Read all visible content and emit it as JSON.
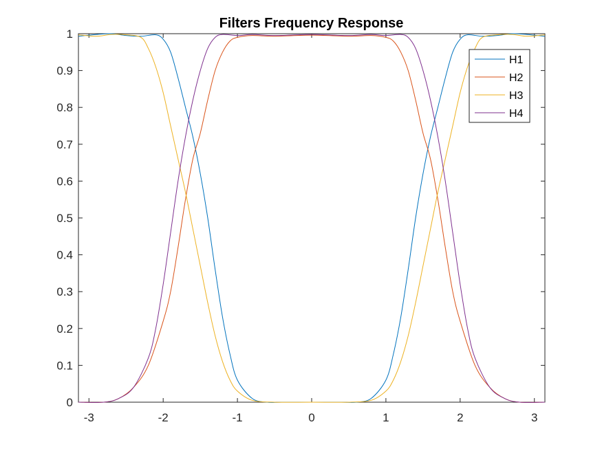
{
  "chart_data": {
    "type": "line",
    "title": "Filters Frequency Response",
    "xlabel": "",
    "ylabel": "",
    "xlim": [
      -3.1416,
      3.1416
    ],
    "ylim": [
      0,
      1
    ],
    "xticks": [
      -3,
      -2,
      -1,
      0,
      1,
      2,
      3
    ],
    "yticks": [
      0,
      0.1,
      0.2,
      0.3,
      0.4,
      0.5,
      0.6,
      0.7,
      0.8,
      0.9,
      1
    ],
    "ytick_labels": [
      "0",
      "0.1",
      "0.2",
      "0.3",
      "0.4",
      "0.5",
      "0.6",
      "0.7",
      "0.8",
      "0.9",
      "1"
    ],
    "grid": false,
    "legend": "top-right",
    "series": [
      {
        "name": "H1",
        "color": "#0072BD",
        "x": [
          -3.14,
          -2.9,
          -2.7,
          -2.5,
          -2.3,
          -2.1,
          -2.0,
          -1.9,
          -1.8,
          -1.7,
          -1.6,
          -1.5,
          -1.4,
          -1.3,
          -1.2,
          -1.1,
          -1.0,
          -0.8,
          -0.6,
          -0.4,
          0.0,
          0.4,
          0.6,
          0.8,
          1.0,
          1.1,
          1.2,
          1.3,
          1.4,
          1.5,
          1.6,
          1.7,
          1.8,
          1.9,
          2.0,
          2.1,
          2.3,
          2.5,
          2.7,
          2.9,
          3.14
        ],
        "y": [
          0.993,
          0.998,
          1.0,
          0.995,
          0.993,
          0.997,
          0.985,
          0.95,
          0.88,
          0.8,
          0.72,
          0.62,
          0.5,
          0.36,
          0.23,
          0.13,
          0.06,
          0.01,
          0.0,
          0.0,
          0.0,
          0.0,
          0.0,
          0.01,
          0.06,
          0.13,
          0.23,
          0.36,
          0.5,
          0.62,
          0.72,
          0.8,
          0.88,
          0.95,
          0.985,
          0.997,
          0.993,
          0.995,
          1.0,
          0.998,
          0.993
        ]
      },
      {
        "name": "H2",
        "color": "#D95319",
        "x": [
          -3.14,
          -2.8,
          -2.6,
          -2.4,
          -2.2,
          -2.0,
          -1.9,
          -1.8,
          -1.7,
          -1.6,
          -1.5,
          -1.4,
          -1.3,
          -1.2,
          -1.1,
          -1.0,
          -0.8,
          -0.5,
          0.0,
          0.5,
          0.8,
          1.0,
          1.1,
          1.2,
          1.3,
          1.4,
          1.5,
          1.6,
          1.7,
          1.8,
          1.9,
          2.0,
          2.2,
          2.4,
          2.6,
          2.8,
          3.14
        ],
        "y": [
          0.0,
          0.0,
          0.01,
          0.04,
          0.1,
          0.22,
          0.3,
          0.42,
          0.55,
          0.66,
          0.73,
          0.82,
          0.9,
          0.95,
          0.98,
          0.99,
          0.995,
          0.993,
          0.996,
          0.993,
          0.995,
          0.99,
          0.98,
          0.95,
          0.9,
          0.82,
          0.73,
          0.66,
          0.55,
          0.42,
          0.3,
          0.22,
          0.1,
          0.04,
          0.01,
          0.0,
          0.0
        ]
      },
      {
        "name": "H3",
        "color": "#EDB120",
        "x": [
          -3.14,
          -2.9,
          -2.7,
          -2.5,
          -2.3,
          -2.2,
          -2.1,
          -2.0,
          -1.9,
          -1.8,
          -1.7,
          -1.6,
          -1.5,
          -1.4,
          -1.3,
          -1.2,
          -1.1,
          -1.0,
          -0.8,
          -0.5,
          0.0,
          0.5,
          0.8,
          1.0,
          1.1,
          1.2,
          1.3,
          1.4,
          1.5,
          1.6,
          1.7,
          1.8,
          1.9,
          2.0,
          2.1,
          2.2,
          2.3,
          2.5,
          2.7,
          2.9,
          3.14
        ],
        "y": [
          0.997,
          0.993,
          0.998,
          0.997,
          0.99,
          0.96,
          0.91,
          0.84,
          0.75,
          0.66,
          0.57,
          0.47,
          0.37,
          0.27,
          0.18,
          0.11,
          0.06,
          0.03,
          0.005,
          0.0,
          0.0,
          0.0,
          0.005,
          0.03,
          0.06,
          0.11,
          0.18,
          0.27,
          0.37,
          0.47,
          0.57,
          0.66,
          0.75,
          0.84,
          0.91,
          0.96,
          0.99,
          0.997,
          0.998,
          0.993,
          0.997
        ]
      },
      {
        "name": "H4",
        "color": "#7E2F8E",
        "x": [
          -3.14,
          -2.8,
          -2.6,
          -2.4,
          -2.2,
          -2.1,
          -2.0,
          -1.9,
          -1.8,
          -1.7,
          -1.6,
          -1.5,
          -1.4,
          -1.3,
          -1.2,
          -1.0,
          -0.8,
          -0.5,
          0.0,
          0.5,
          0.8,
          1.0,
          1.2,
          1.3,
          1.4,
          1.5,
          1.6,
          1.7,
          1.8,
          1.9,
          2.0,
          2.1,
          2.2,
          2.4,
          2.6,
          2.8,
          3.14
        ],
        "y": [
          0.0,
          0.0,
          0.01,
          0.04,
          0.12,
          0.2,
          0.32,
          0.46,
          0.6,
          0.72,
          0.82,
          0.9,
          0.96,
          0.99,
          0.998,
          0.995,
          0.998,
          0.995,
          0.998,
          0.995,
          0.998,
          0.995,
          0.998,
          0.99,
          0.96,
          0.9,
          0.82,
          0.72,
          0.6,
          0.46,
          0.32,
          0.2,
          0.12,
          0.04,
          0.01,
          0.0,
          0.0
        ]
      }
    ]
  }
}
